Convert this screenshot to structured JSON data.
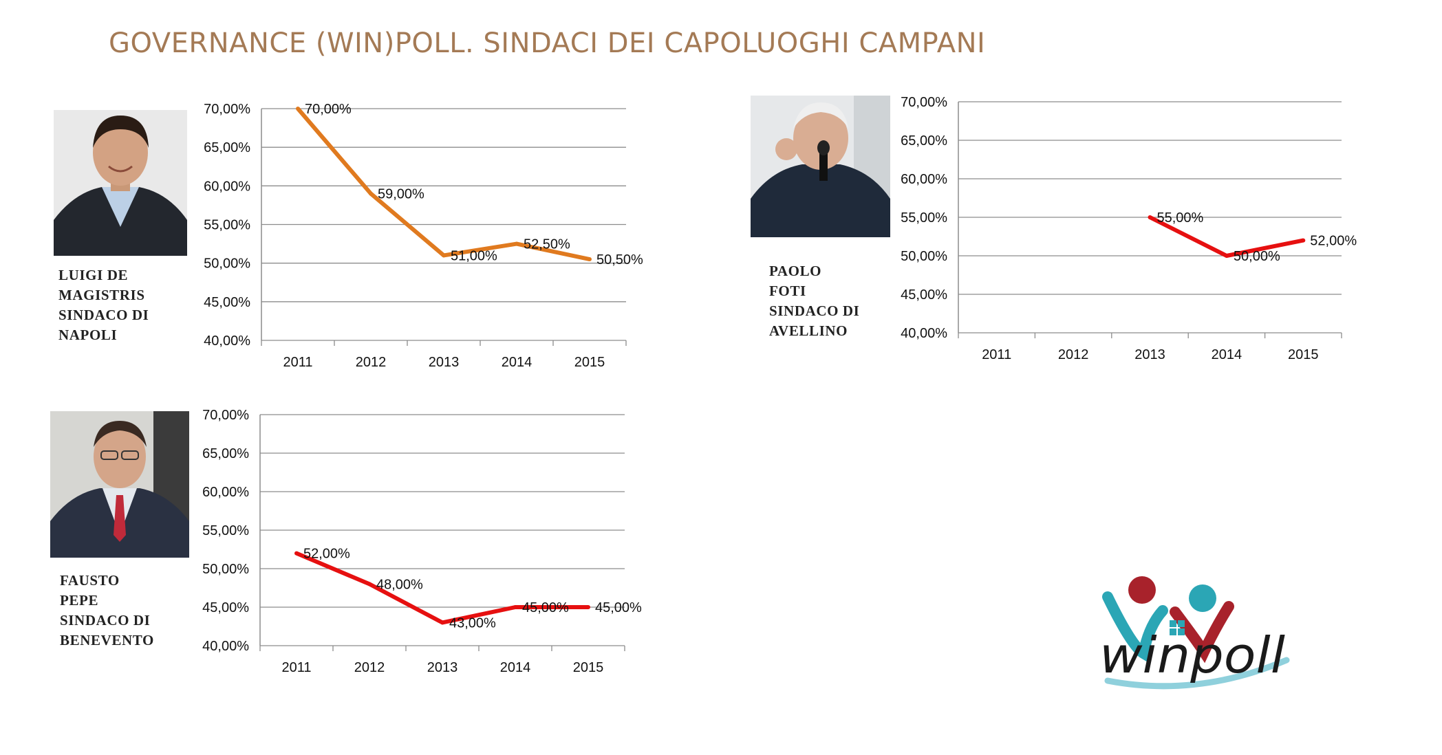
{
  "title": "GOVERNANCE (WIN)POLL. SINDACI DEI CAPOLUOGHI CAMPANI",
  "colors": {
    "title": "#a47a55",
    "napoli_line": "#e07a1f",
    "red_line": "#e61010",
    "grid": "#8c8c8c"
  },
  "mayors": [
    {
      "caption": [
        "LUIGI DE",
        "MAGISTRIS",
        "SINDACO DI",
        "NAPOLI"
      ]
    },
    {
      "caption": [
        "PAOLO",
        "FOTI",
        "SINDACO DI",
        "AVELLINO"
      ]
    },
    {
      "caption": [
        "FAUSTO",
        "PEPE",
        "SINDACO DI",
        "BENEVENTO"
      ]
    }
  ],
  "logo": {
    "text": "winpoll"
  },
  "chart_data": [
    {
      "type": "line",
      "categories": [
        "2011",
        "2012",
        "2013",
        "2014",
        "2015"
      ],
      "series": [
        {
          "values": [
            70.0,
            59.0,
            51.0,
            52.5,
            50.5
          ],
          "color": "#e07a1f"
        }
      ],
      "data_labels": [
        "70,00%",
        "59,00%",
        "51,00%",
        "52,50%",
        "50,50%"
      ],
      "yticks": [
        "40,00%",
        "45,00%",
        "50,00%",
        "55,00%",
        "60,00%",
        "65,00%",
        "70,00%"
      ],
      "ylim": [
        40,
        70
      ],
      "grid": true,
      "title": "",
      "xlabel": "",
      "ylabel": ""
    },
    {
      "type": "line",
      "categories": [
        "2011",
        "2012",
        "2013",
        "2014",
        "2015"
      ],
      "series": [
        {
          "values": [
            null,
            null,
            55.0,
            50.0,
            52.0
          ],
          "color": "#e61010"
        }
      ],
      "data_labels": [
        "",
        "",
        "55,00%",
        "50,00%",
        "52,00%"
      ],
      "yticks": [
        "40,00%",
        "45,00%",
        "50,00%",
        "55,00%",
        "60,00%",
        "65,00%",
        "70,00%"
      ],
      "ylim": [
        40,
        70
      ],
      "grid": true,
      "title": "",
      "xlabel": "",
      "ylabel": ""
    },
    {
      "type": "line",
      "categories": [
        "2011",
        "2012",
        "2013",
        "2014",
        "2015"
      ],
      "series": [
        {
          "values": [
            52.0,
            48.0,
            43.0,
            45.0,
            45.0
          ],
          "color": "#e61010"
        }
      ],
      "data_labels": [
        "52,00%",
        "48,00%",
        "43,00%",
        "45,00%",
        "45,00%"
      ],
      "yticks": [
        "40,00%",
        "45,00%",
        "50,00%",
        "55,00%",
        "60,00%",
        "65,00%",
        "70,00%"
      ],
      "ylim": [
        40,
        70
      ],
      "grid": true,
      "title": "",
      "xlabel": "",
      "ylabel": ""
    }
  ]
}
